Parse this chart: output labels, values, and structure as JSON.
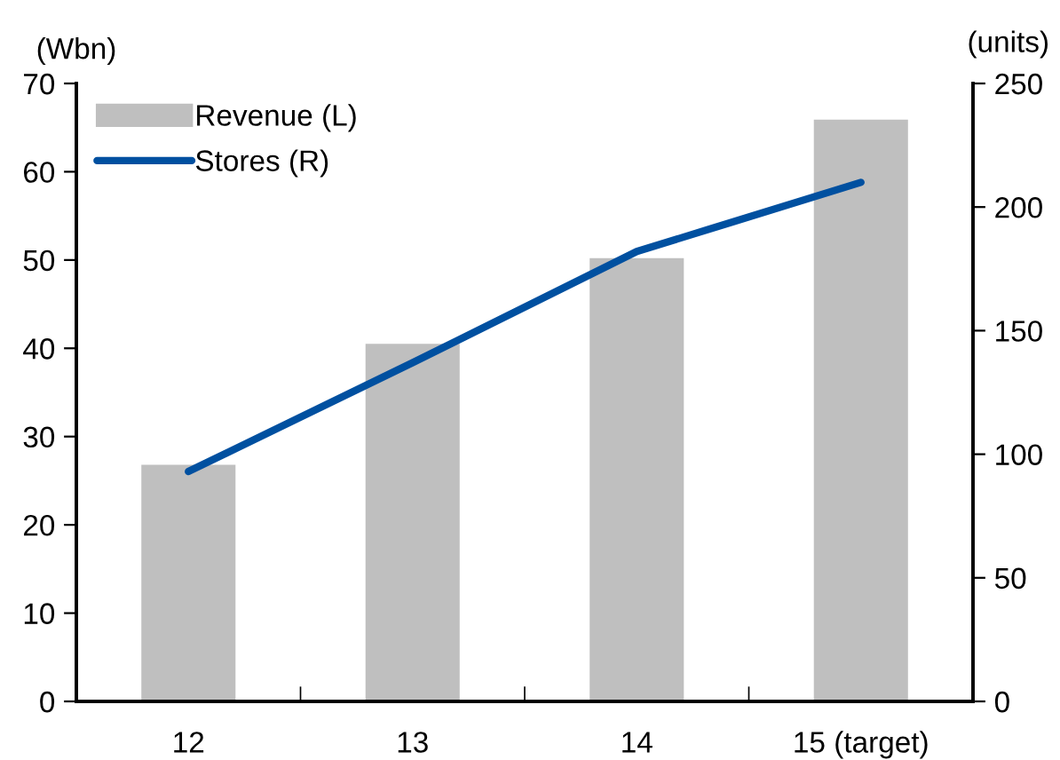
{
  "chart_data": {
    "type": "bar",
    "categories": [
      "12",
      "13",
      "14",
      "15 (target)"
    ],
    "ylabel": "(Wbn)",
    "y2label": "(units)",
    "ylim": [
      0,
      70
    ],
    "yticks": [
      0,
      10,
      20,
      30,
      40,
      50,
      60,
      70
    ],
    "y2lim": [
      0,
      250
    ],
    "y2ticks": [
      0,
      50,
      100,
      150,
      200,
      250
    ],
    "grid": false,
    "legend": "top left",
    "series": [
      {
        "name": "Revenue (L)",
        "color": "#bfbfbf",
        "values": [
          26.8,
          40.5,
          50.2,
          65.9
        ]
      },
      {
        "name": "Stores (R)",
        "type": "line",
        "axis": "y2",
        "color": "#0050a0",
        "values": [
          93,
          137,
          182,
          210
        ]
      }
    ]
  }
}
